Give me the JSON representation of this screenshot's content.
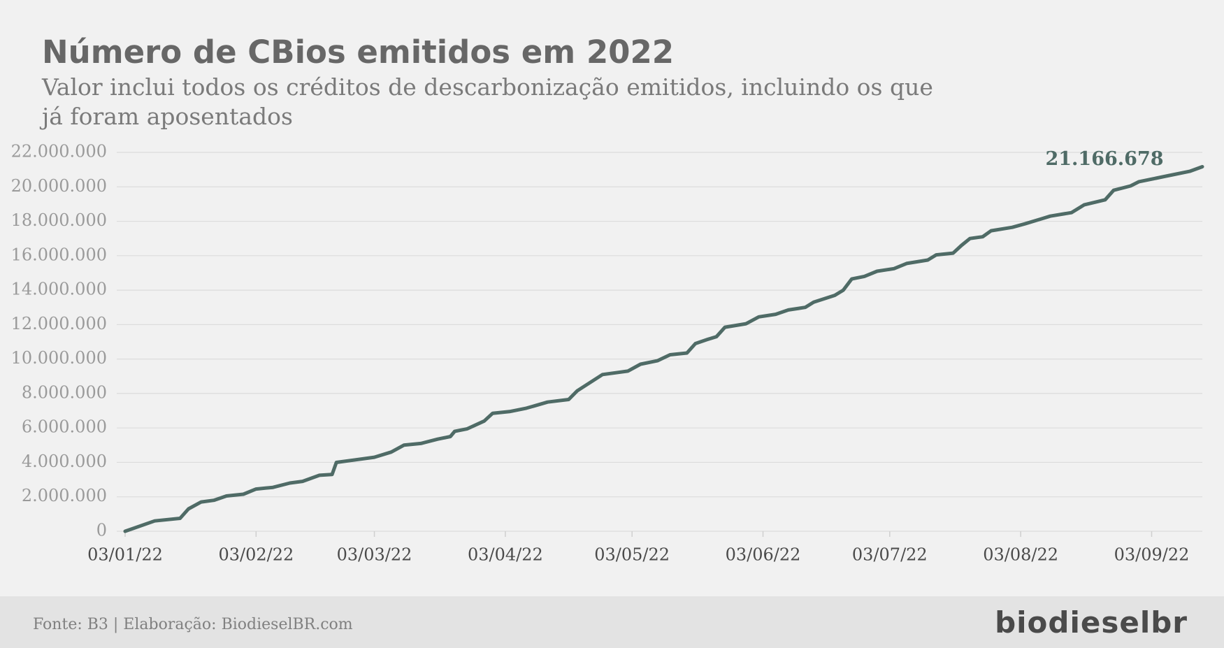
{
  "chart_data": {
    "type": "line",
    "title": "Número de CBios emitidos em 2022",
    "subtitle": "Valor inclui todos os créditos de descarbonização emitidos, incluindo os que já foram aposentados",
    "source": "Fonte: B3 | Elaboração: BiodieselBR.com",
    "logo": "biodieselbr",
    "grid": true,
    "xlim": [
      "03/01/22",
      "15/09/22"
    ],
    "xticks": [
      "03/01/22",
      "03/02/22",
      "03/03/22",
      "03/04/22",
      "03/05/22",
      "03/06/22",
      "03/07/22",
      "03/08/22",
      "03/09/22"
    ],
    "ylim": [
      0,
      22000000
    ],
    "yticks": [
      0,
      {
        "value": 2000000,
        "label": "2.000.000"
      },
      {
        "value": 4000000,
        "label": "4.000.000"
      },
      {
        "value": 6000000,
        "label": "6.000.000"
      },
      {
        "value": 8000000,
        "label": "8.000.000"
      },
      {
        "value": 10000000,
        "label": "10.000.000"
      },
      {
        "value": 12000000,
        "label": "12.000.000"
      },
      {
        "value": 14000000,
        "label": "14.000.000"
      },
      {
        "value": 16000000,
        "label": "16.000.000"
      },
      {
        "value": 18000000,
        "label": "18.000.000"
      },
      {
        "value": 20000000,
        "label": "20.000.000"
      },
      {
        "value": 22000000,
        "label": "22.000.000"
      }
    ],
    "x": [
      "03/01/22",
      "10/01/22",
      "16/01/22",
      "18/01/22",
      "21/01/22",
      "24/01/22",
      "27/01/22",
      "31/01/22",
      "03/02/22",
      "07/02/22",
      "11/02/22",
      "14/02/22",
      "18/02/22",
      "21/02/22",
      "22/02/22",
      "03/03/22",
      "07/03/22",
      "10/03/22",
      "14/03/22",
      "18/03/22",
      "21/03/22",
      "22/03/22",
      "25/03/22",
      "29/03/22",
      "31/03/22",
      "04/04/22",
      "08/04/22",
      "13/04/22",
      "18/04/22",
      "20/04/22",
      "26/04/22",
      "02/05/22",
      "05/05/22",
      "09/05/22",
      "12/05/22",
      "16/05/22",
      "18/05/22",
      "21/05/22",
      "23/05/22",
      "25/05/22",
      "30/05/22",
      "02/06/22",
      "06/06/22",
      "09/06/22",
      "13/06/22",
      "15/06/22",
      "20/06/22",
      "22/06/22",
      "24/06/22",
      "27/06/22",
      "30/06/22",
      "04/07/22",
      "07/07/22",
      "12/07/22",
      "14/07/22",
      "18/07/22",
      "20/07/22",
      "22/07/22",
      "25/07/22",
      "27/07/22",
      "01/08/22",
      "04/08/22",
      "08/08/22",
      "10/08/22",
      "15/08/22",
      "18/08/22",
      "23/08/22",
      "25/08/22",
      "29/08/22",
      "31/08/22",
      "04/09/22",
      "08/09/22",
      "12/09/22",
      "15/09/22"
    ],
    "series": [
      {
        "name": "CBios emitidos",
        "color": "#4f6b66",
        "values": [
          0,
          600000,
          750000,
          1300000,
          1700000,
          1800000,
          2050000,
          2150000,
          2450000,
          2550000,
          2800000,
          2900000,
          3250000,
          3300000,
          4000000,
          4300000,
          4600000,
          5000000,
          5100000,
          5350000,
          5500000,
          5800000,
          5950000,
          6400000,
          6850000,
          6950000,
          7150000,
          7500000,
          7650000,
          8150000,
          9100000,
          9300000,
          9700000,
          9900000,
          10250000,
          10350000,
          10900000,
          11150000,
          11300000,
          11850000,
          12050000,
          12450000,
          12600000,
          12850000,
          13000000,
          13300000,
          13700000,
          14000000,
          14650000,
          14800000,
          15100000,
          15250000,
          15550000,
          15750000,
          16050000,
          16150000,
          16600000,
          17000000,
          17100000,
          17450000,
          17650000,
          17850000,
          18150000,
          18300000,
          18500000,
          18950000,
          19250000,
          19800000,
          20050000,
          20300000,
          20500000,
          20700000,
          20900000,
          21166678
        ],
        "value_labels": [
          null,
          null,
          null,
          null,
          null,
          null,
          null,
          null,
          null,
          null,
          null,
          null,
          null,
          null,
          null,
          null,
          null,
          null,
          null,
          null,
          null,
          null,
          null,
          null,
          null,
          null,
          null,
          null,
          null,
          null,
          null,
          null,
          null,
          null,
          null,
          null,
          null,
          null,
          null,
          null,
          null,
          null,
          null,
          null,
          null,
          null,
          null,
          null,
          null,
          null,
          null,
          null,
          null,
          null,
          null,
          null,
          null,
          null,
          null,
          null,
          null,
          null,
          null,
          null,
          null,
          null,
          null,
          null,
          null,
          null,
          null,
          null,
          null,
          "21.166.678"
        ]
      }
    ]
  }
}
